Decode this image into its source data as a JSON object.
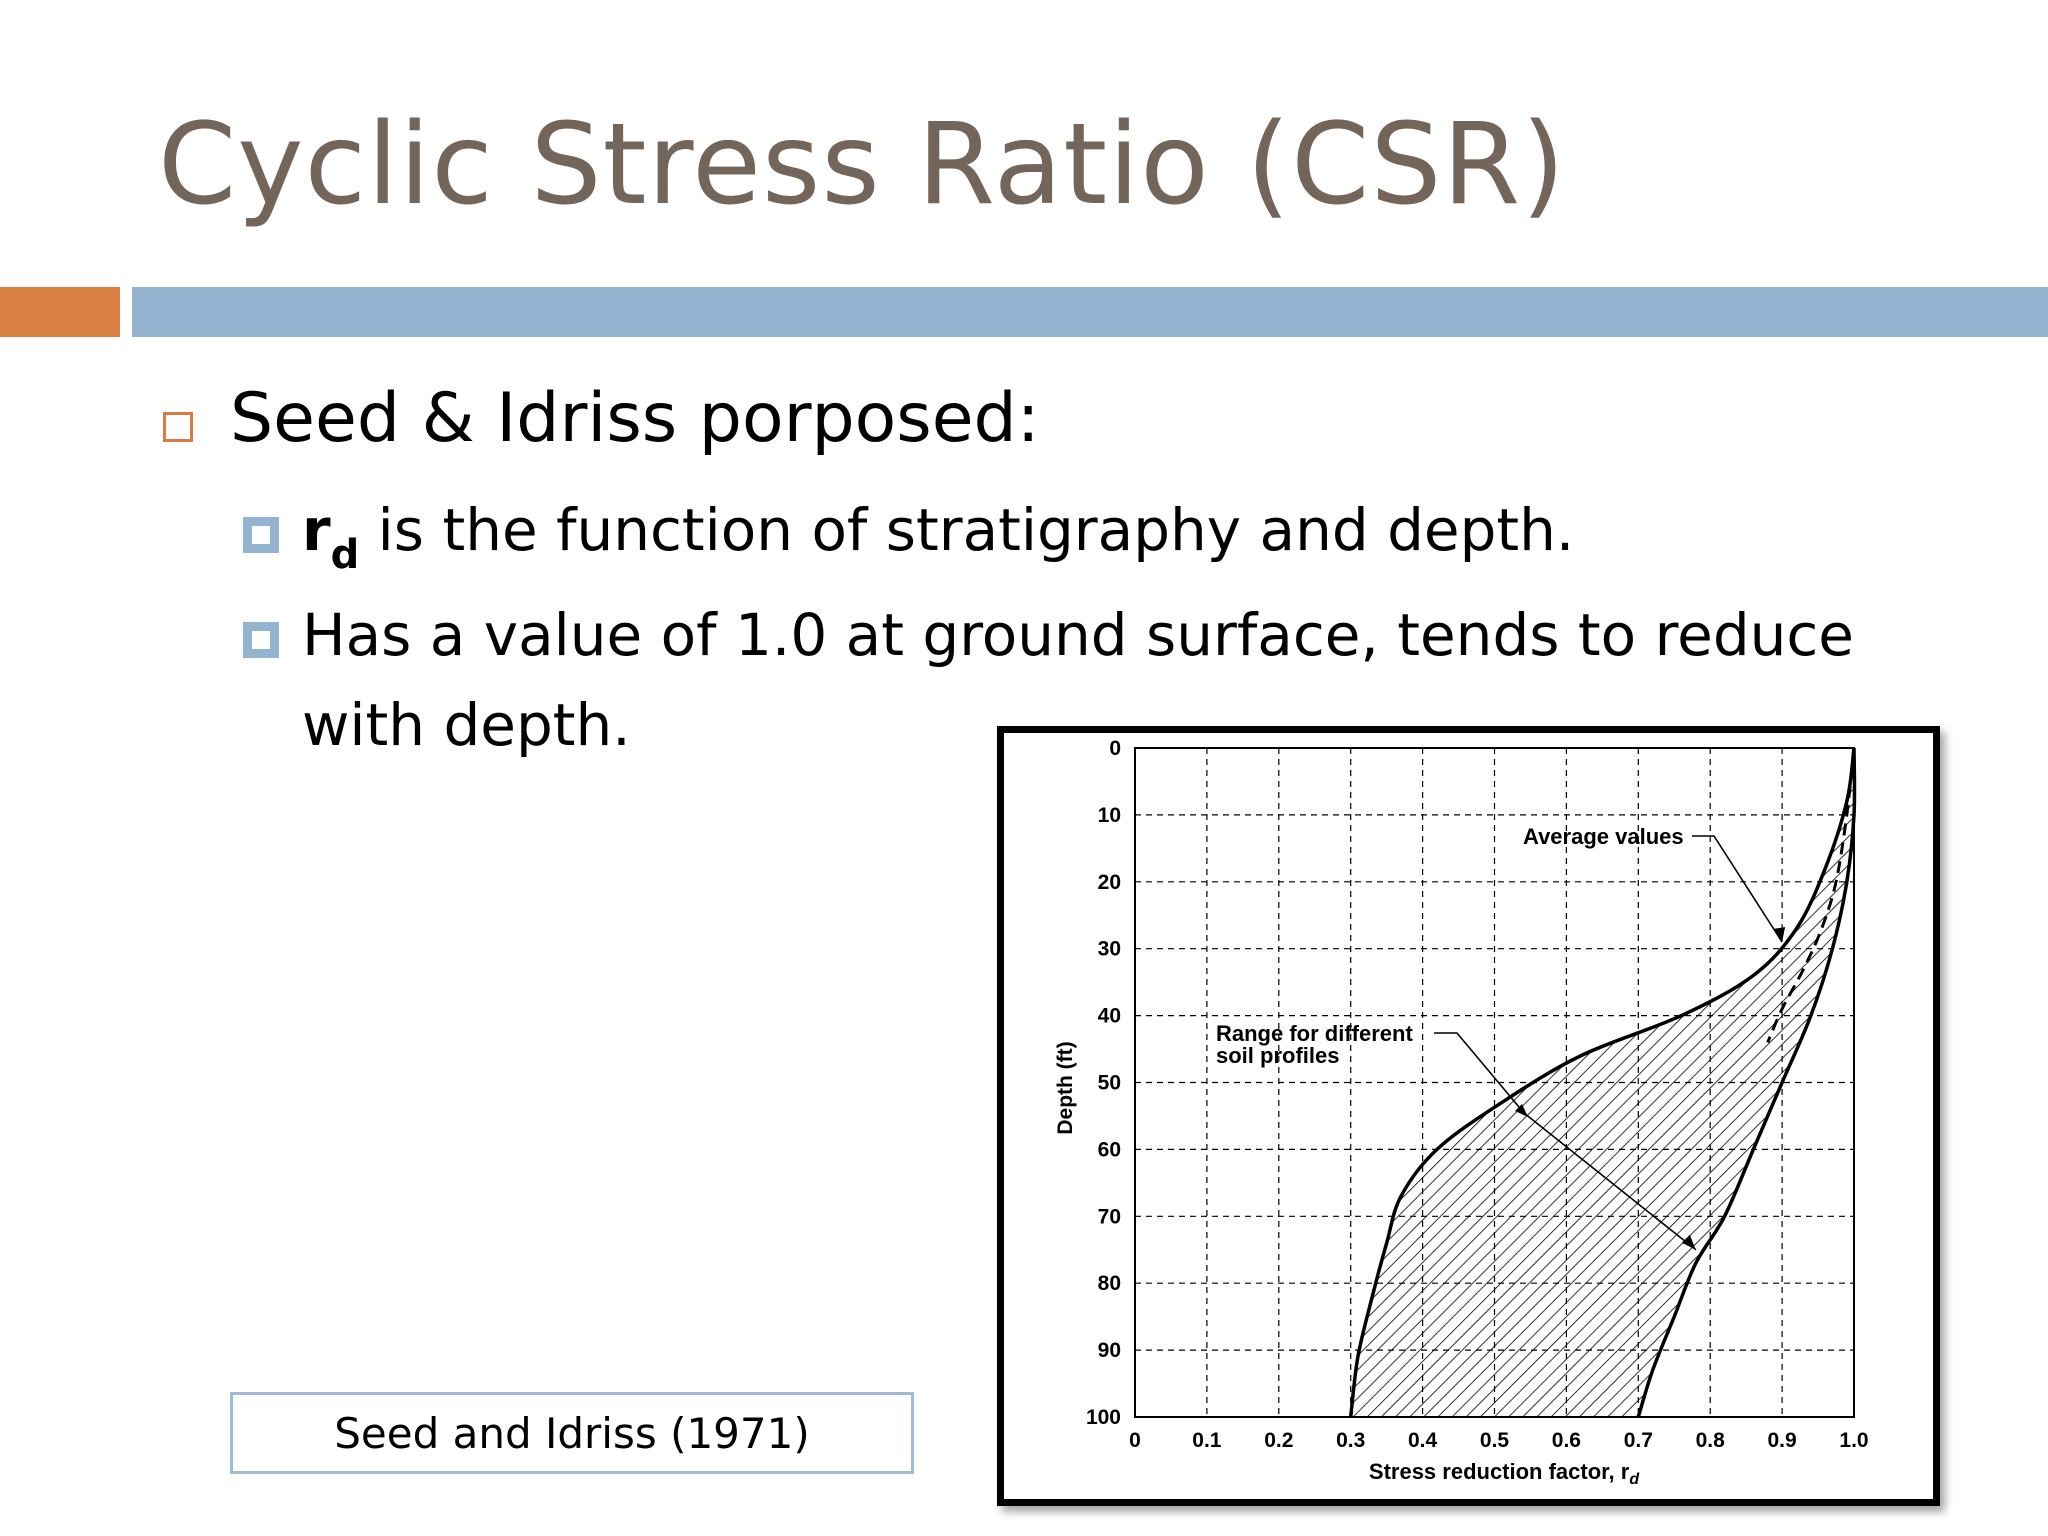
{
  "slide": {
    "title": "Cyclic Stress Ratio (CSR)",
    "accent_colors": {
      "orange": "#dc8145",
      "blue": "#93b3d0",
      "title": "#74655b"
    },
    "bullets": [
      {
        "text": "Seed & Idriss porposed:"
      }
    ],
    "sub_bullets": [
      {
        "rd_main": "r",
        "rd_sub": "d",
        "text": " is the function of stratigraphy and depth."
      },
      {
        "line1": "Has a value of 1.0 at ground surface, tends to reduce",
        "line2": "with depth."
      }
    ],
    "caption": "Seed and Idriss (1971)"
  },
  "chart_data": {
    "type": "area",
    "xlabel": "Stress reduction factor, r",
    "xlabel_sub": "d",
    "ylabel": "Depth (ft)",
    "xlim": [
      0,
      1.0
    ],
    "ylim": [
      0,
      100
    ],
    "y_inverted": true,
    "grid": true,
    "grid_style": "dashed",
    "x_ticks": [
      "0",
      "0.1",
      "0.2",
      "0.3",
      "0.4",
      "0.5",
      "0.6",
      "0.7",
      "0.8",
      "0.9",
      "1.0"
    ],
    "y_ticks": [
      "0",
      "10",
      "20",
      "30",
      "40",
      "50",
      "60",
      "70",
      "80",
      "90",
      "100"
    ],
    "annotations": [
      {
        "text": "Average values",
        "target_x": 0.9,
        "target_y": 29
      },
      {
        "text_line1": "Range for different",
        "text_line2": "soil profiles",
        "target_x": 0.78,
        "target_y": 75
      }
    ],
    "series": [
      {
        "role": "range-upper",
        "x": [
          1.0,
          1.0,
          0.99,
          0.97,
          0.94,
          0.9,
          0.86,
          0.82,
          0.78,
          0.75,
          0.72,
          0.7
        ],
        "y": [
          0,
          10,
          20,
          30,
          40,
          50,
          60,
          70,
          77,
          85,
          93,
          100
        ]
      },
      {
        "role": "range-lower",
        "x": [
          1.0,
          0.99,
          0.96,
          0.92,
          0.86,
          0.76,
          0.62,
          0.51,
          0.42,
          0.37,
          0.35,
          0.33,
          0.31,
          0.3
        ],
        "y": [
          0,
          8,
          18,
          27,
          34,
          40,
          46,
          53,
          60,
          67,
          74,
          82,
          91,
          100
        ]
      },
      {
        "role": "average",
        "x": [
          1.0,
          0.99,
          0.975,
          0.955,
          0.93,
          0.9,
          0.88
        ],
        "y": [
          0,
          10,
          20,
          27,
          33,
          39,
          44
        ]
      }
    ]
  }
}
